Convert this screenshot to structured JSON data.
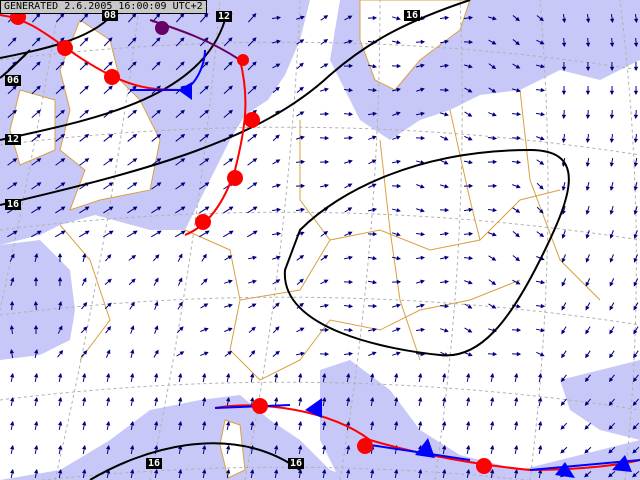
{
  "header": {
    "generated": "GENERATED 2.6.2005 16:00:09 UTC+2"
  },
  "isobar_labels": [
    "08",
    "12",
    "16",
    "06",
    "12",
    "16",
    "16",
    "16"
  ],
  "colors": {
    "sea": "#c8c8f8",
    "land": "#ffffff",
    "borders": "#d8a040",
    "wind_arrows": "#000080",
    "isobars": "#000000",
    "warm_front": "#ff0000",
    "cold_front": "#0000ff",
    "occluded_front": "#660066",
    "graticule": "#b0b0b0"
  },
  "legend": {
    "icons": [
      "wind-arrow",
      "warm-front",
      "cold-front",
      "occluded-front",
      "isobar"
    ]
  }
}
